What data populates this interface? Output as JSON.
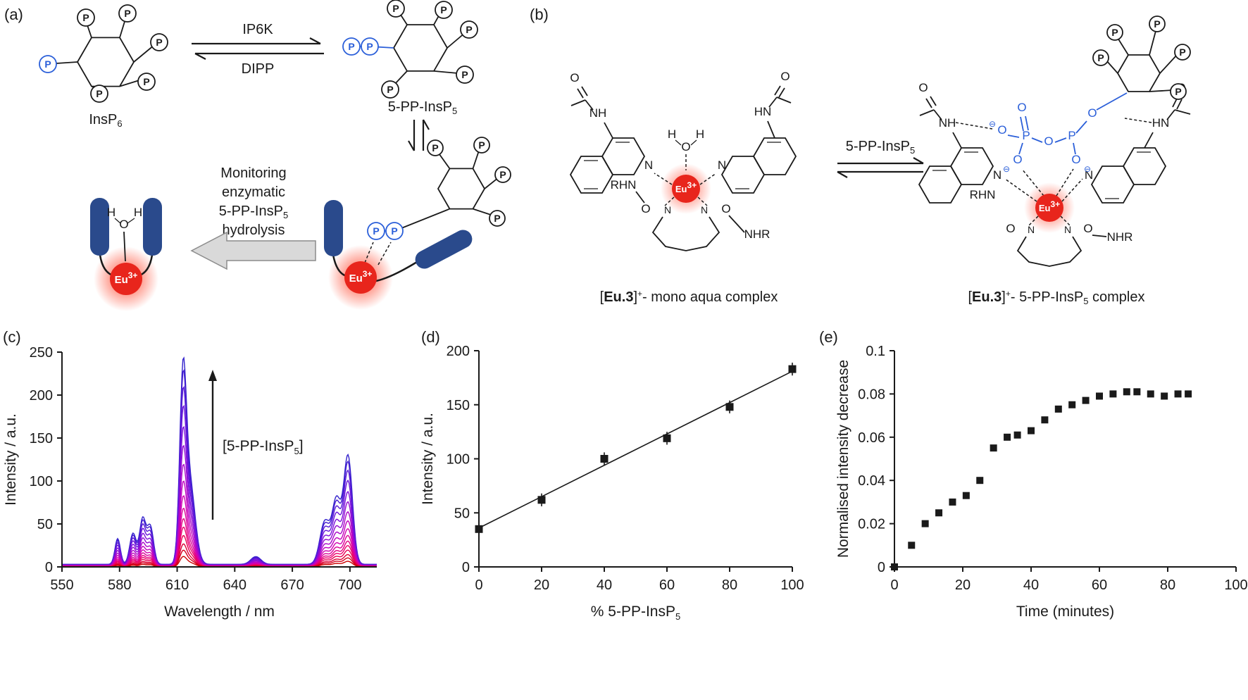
{
  "panels": {
    "a": {
      "label": "(a)",
      "insp6": {
        "base": "InsP",
        "sub": "6"
      },
      "enzyme_forward": "IP6K",
      "enzyme_reverse": "DIPP",
      "pp_insp5": {
        "base": "5-PP-InsP",
        "sub": "5"
      },
      "monitoring": {
        "line1": "Monitoring",
        "line2": "enzymatic",
        "line3_base": "5-PP-InsP",
        "line3_sub": "5",
        "line4": "hydrolysis"
      }
    },
    "b": {
      "label": "(b)",
      "arrow_label": {
        "base": "5-PP-InsP",
        "sub": "5"
      },
      "caption_left": {
        "bracket_open": "[",
        "bold": "Eu.3",
        "bracket_close": "]",
        "sup": "+",
        "rest": "- mono aqua complex"
      },
      "caption_right": {
        "bracket_open": "[",
        "bold": "Eu.3",
        "bracket_close": "]",
        "sup": "+",
        "rest_base": "- 5-PP-InsP",
        "rest_sub": "5",
        "rest_end": " complex"
      }
    }
  },
  "symbols": {
    "P": "P",
    "O": "O",
    "N": "N",
    "H": "H",
    "HN": "HN",
    "NH": "NH",
    "RHN": "RHN",
    "NHR": "NHR",
    "eu_base": "Eu",
    "eu_sup": "3+",
    "minus_circle": "⊖"
  },
  "colors": {
    "phosphate_blue": "#2b5fd9",
    "antenna_blue": "#2a4a8c",
    "eu_red": "#e8251c",
    "structure_black": "#1a1a1a",
    "block_arrow_fill": "#d9d9d9",
    "block_arrow_stroke": "#8c8c8c"
  },
  "chart_data": [
    {
      "id": "emission-spectra",
      "panel_label": "(c)",
      "type": "line",
      "xlabel": "Wavelength / nm",
      "ylabel": "Intensity / a.u.",
      "xlim": [
        550,
        714
      ],
      "ylim": [
        0,
        250
      ],
      "xticks": [
        550,
        580,
        610,
        640,
        670,
        700
      ],
      "yticks": [
        0,
        50,
        100,
        150,
        200,
        250
      ],
      "annotation": {
        "base": "[5-PP-InsP",
        "sub": "5",
        "end": "]",
        "arrow_direction": "up"
      },
      "series_model": {
        "description": "Eu(III) emission spectra at increasing 5-PP-InsP5 concentration",
        "peaks": [
          {
            "center": 579,
            "amp": 30,
            "width": 1.4
          },
          {
            "center": 587,
            "amp": 36,
            "width": 1.7
          },
          {
            "center": 592,
            "amp": 52,
            "width": 1.6
          },
          {
            "center": 596,
            "amp": 44,
            "width": 1.7
          },
          {
            "center": 613,
            "amp": 195,
            "width": 1.7
          },
          {
            "center": 616.5,
            "amp": 95,
            "width": 2.8
          },
          {
            "center": 651,
            "amp": 9,
            "width": 2.6
          },
          {
            "center": 687,
            "amp": 50,
            "width": 2.6
          },
          {
            "center": 693,
            "amp": 72,
            "width": 2.2
          },
          {
            "center": 699,
            "amp": 126,
            "width": 2.3
          }
        ],
        "baseline": 3,
        "scales": [
          0.05,
          0.08,
          0.11,
          0.15,
          0.19,
          0.23,
          0.28,
          0.34,
          0.41,
          0.49,
          0.58,
          0.67,
          0.77,
          0.86,
          0.94,
          1.0
        ],
        "color_stops": [
          "#cc0000",
          "#ee0066",
          "#cc00bb",
          "#7711dd",
          "#3322cc"
        ]
      }
    },
    {
      "id": "titration-plot",
      "panel_label": "(d)",
      "type": "scatter",
      "xlabel": {
        "base": "% 5-PP-InsP",
        "sub": "5"
      },
      "ylabel": "Intensity / a.u.",
      "xlim": [
        0,
        100
      ],
      "ylim": [
        0,
        200
      ],
      "xticks": [
        0,
        20,
        40,
        60,
        80,
        100
      ],
      "yticks": [
        0,
        50,
        100,
        150,
        200
      ],
      "points": [
        [
          0,
          35
        ],
        [
          20,
          62
        ],
        [
          40,
          100
        ],
        [
          60,
          119
        ],
        [
          80,
          148
        ],
        [
          100,
          183
        ]
      ],
      "error_bar": 4,
      "fit_line": {
        "x_start": 0,
        "y_start": 36,
        "x_end": 100,
        "y_end": 181
      },
      "marker": "square",
      "marker_size": 11,
      "marker_color": "#1a1a1a"
    },
    {
      "id": "kinetics-plot",
      "panel_label": "(e)",
      "type": "scatter",
      "xlabel": "Time (minutes)",
      "ylabel": "Normalised intensity decrease",
      "xlim": [
        0,
        100
      ],
      "ylim": [
        0,
        0.1
      ],
      "xticks": [
        0,
        20,
        40,
        60,
        80,
        100
      ],
      "yticks": [
        0,
        0.02,
        0.04,
        0.06,
        0.08,
        0.1
      ],
      "points": [
        [
          0,
          0
        ],
        [
          5,
          0.01
        ],
        [
          9,
          0.02
        ],
        [
          13,
          0.025
        ],
        [
          17,
          0.03
        ],
        [
          21,
          0.033
        ],
        [
          25,
          0.04
        ],
        [
          29,
          0.055
        ],
        [
          33,
          0.06
        ],
        [
          36,
          0.061
        ],
        [
          40,
          0.063
        ],
        [
          44,
          0.068
        ],
        [
          48,
          0.073
        ],
        [
          52,
          0.075
        ],
        [
          56,
          0.077
        ],
        [
          60,
          0.079
        ],
        [
          64,
          0.08
        ],
        [
          68,
          0.081
        ],
        [
          71,
          0.081
        ],
        [
          75,
          0.08
        ],
        [
          79,
          0.079
        ],
        [
          83,
          0.08
        ],
        [
          86,
          0.08
        ]
      ],
      "marker": "square",
      "marker_size": 10,
      "marker_color": "#1a1a1a"
    }
  ]
}
